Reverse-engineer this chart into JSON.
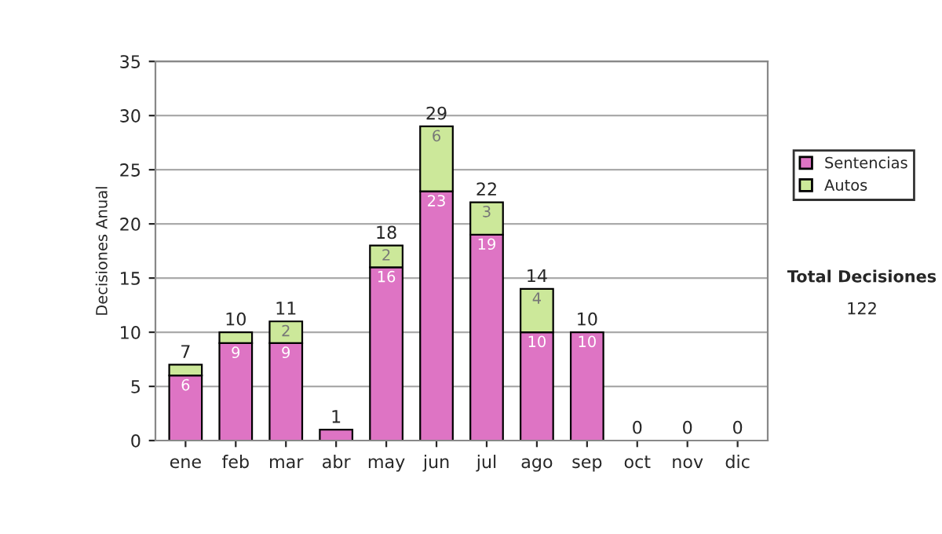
{
  "chart_data": {
    "type": "bar",
    "stacked": true,
    "ylabel": "Decisiones Anual",
    "categories": [
      "ene",
      "feb",
      "mar",
      "abr",
      "may",
      "jun",
      "jul",
      "ago",
      "sep",
      "oct",
      "nov",
      "dic"
    ],
    "series": [
      {
        "name": "Sentencias",
        "color": "#de74c4",
        "values": [
          6,
          9,
          9,
          1,
          16,
          23,
          19,
          10,
          10,
          0,
          0,
          0
        ],
        "value_labels": [
          "6",
          "9",
          "9",
          null,
          "16",
          "23",
          "19",
          "10",
          "10",
          null,
          null,
          null
        ]
      },
      {
        "name": "Autos",
        "color": "#cce89a",
        "values": [
          1,
          1,
          2,
          0,
          2,
          6,
          3,
          4,
          0,
          0,
          0,
          0
        ],
        "value_labels": [
          null,
          null,
          "2",
          null,
          "2",
          "6",
          "3",
          "4",
          null,
          null,
          null,
          null
        ]
      }
    ],
    "totals": [
      "7",
      "10",
      "11",
      "1",
      "18",
      "29",
      "22",
      "14",
      "10",
      "0",
      "0",
      "0"
    ],
    "ylim": [
      0,
      35
    ],
    "yticks": [
      0,
      5,
      10,
      15,
      20,
      25,
      30,
      35
    ],
    "grid": "y",
    "legend": "right",
    "annotations": [
      "Total Decisiones",
      "122"
    ]
  }
}
